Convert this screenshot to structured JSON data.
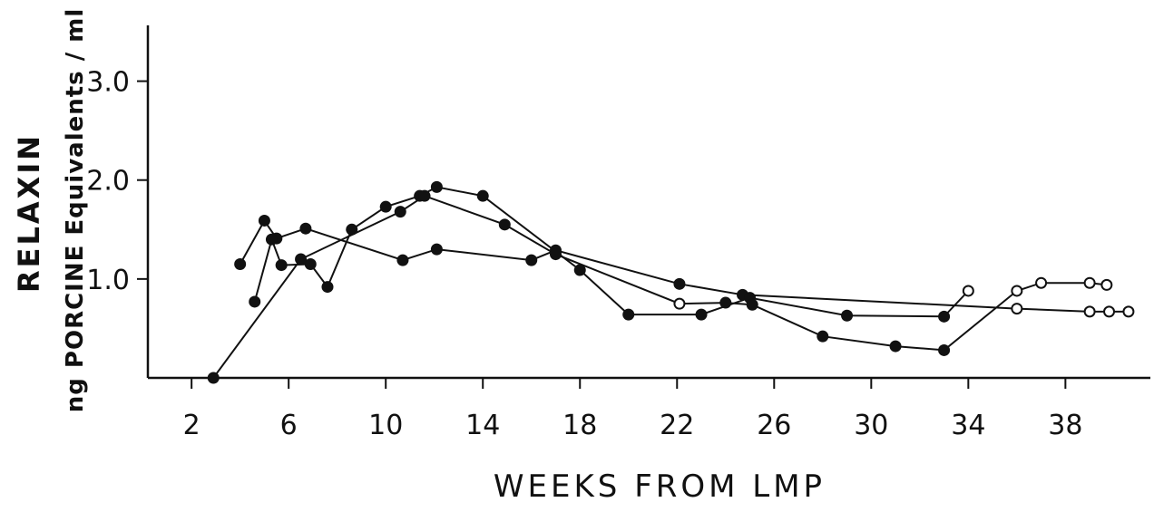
{
  "chart_data": {
    "type": "line",
    "title": "",
    "xlabel": "WEEKS FROM LMP",
    "ylabel_line1": "RELAXIN",
    "ylabel_line2": "ng PORCINE Equivalents / ml",
    "xlim": [
      0.2,
      41.5
    ],
    "ylim": [
      0,
      3.5
    ],
    "x_ticks": [
      2,
      6,
      10,
      14,
      18,
      22,
      26,
      30,
      34,
      38
    ],
    "x_tick_labels": [
      "2",
      "6",
      "10",
      "14",
      "18",
      "22",
      "26",
      "30",
      "34",
      "38"
    ],
    "y_ticks": [
      1.0,
      2.0,
      3.0
    ],
    "y_tick_labels": [
      "1.0",
      "2.0",
      "3.0"
    ],
    "grid": false,
    "legend": "none",
    "marker_legend": {
      "filled": "solid circle",
      "open": "open circle"
    },
    "series": [
      {
        "points": [
          {
            "x": 4.0,
            "y": 1.15,
            "open": false
          },
          {
            "x": 5.0,
            "y": 1.59,
            "open": false
          },
          {
            "x": 5.5,
            "y": 1.41,
            "open": false
          },
          {
            "x": 6.7,
            "y": 1.51,
            "open": false
          },
          {
            "x": 10.7,
            "y": 1.19,
            "open": false
          },
          {
            "x": 12.1,
            "y": 1.3,
            "open": false
          },
          {
            "x": 16.0,
            "y": 1.19,
            "open": false
          },
          {
            "x": 17.0,
            "y": 1.29,
            "open": false
          },
          {
            "x": 22.1,
            "y": 0.95,
            "open": false
          },
          {
            "x": 24.7,
            "y": 0.84,
            "open": false
          },
          {
            "x": 36.0,
            "y": 0.7,
            "open": true
          },
          {
            "x": 39.0,
            "y": 0.67,
            "open": true
          },
          {
            "x": 39.8,
            "y": 0.67,
            "open": true
          },
          {
            "x": 40.6,
            "y": 0.67,
            "open": true
          }
        ]
      },
      {
        "points": [
          {
            "x": 4.6,
            "y": 0.77,
            "open": false
          },
          {
            "x": 5.3,
            "y": 1.4,
            "open": false
          },
          {
            "x": 5.7,
            "y": 1.14,
            "open": false
          },
          {
            "x": 6.9,
            "y": 1.15,
            "open": false
          },
          {
            "x": 7.6,
            "y": 0.92,
            "open": false
          },
          {
            "x": 8.6,
            "y": 1.5,
            "open": false
          },
          {
            "x": 10.0,
            "y": 1.73,
            "open": false
          },
          {
            "x": 11.4,
            "y": 1.84,
            "open": false
          },
          {
            "x": 12.1,
            "y": 1.93,
            "open": false
          },
          {
            "x": 14.0,
            "y": 1.84,
            "open": false
          },
          {
            "x": 18.0,
            "y": 1.09,
            "open": false
          },
          {
            "x": 20.0,
            "y": 0.64,
            "open": false
          },
          {
            "x": 23.0,
            "y": 0.64,
            "open": false
          },
          {
            "x": 25.0,
            "y": 0.81,
            "open": false
          },
          {
            "x": 29.0,
            "y": 0.63,
            "open": false
          },
          {
            "x": 33.0,
            "y": 0.62,
            "open": false
          },
          {
            "x": 34.0,
            "y": 0.88,
            "open": true
          }
        ]
      },
      {
        "points": [
          {
            "x": 2.9,
            "y": 0.0,
            "open": false
          },
          {
            "x": 6.5,
            "y": 1.2,
            "open": false
          },
          {
            "x": 10.6,
            "y": 1.68,
            "open": false
          },
          {
            "x": 11.6,
            "y": 1.84,
            "open": false
          },
          {
            "x": 14.9,
            "y": 1.55,
            "open": false
          },
          {
            "x": 17.0,
            "y": 1.25,
            "open": false
          },
          {
            "x": 22.1,
            "y": 0.75,
            "open": true
          },
          {
            "x": 24.0,
            "y": 0.76,
            "open": false
          },
          {
            "x": 25.1,
            "y": 0.74,
            "open": false
          },
          {
            "x": 28.0,
            "y": 0.42,
            "open": false
          },
          {
            "x": 31.0,
            "y": 0.32,
            "open": false
          },
          {
            "x": 33.0,
            "y": 0.28,
            "open": false
          },
          {
            "x": 36.0,
            "y": 0.88,
            "open": true
          },
          {
            "x": 37.0,
            "y": 0.96,
            "open": true
          },
          {
            "x": 39.0,
            "y": 0.96,
            "open": true
          },
          {
            "x": 39.7,
            "y": 0.94,
            "open": true
          }
        ]
      }
    ]
  }
}
